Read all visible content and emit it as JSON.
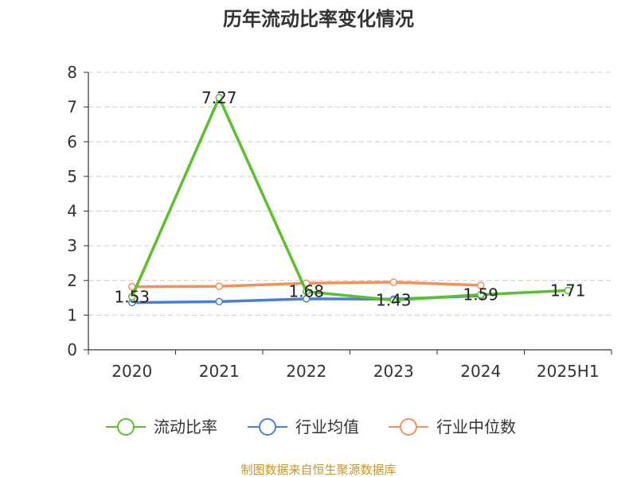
{
  "chart_data": {
    "type": "line",
    "title": "历年流动比率变化情况",
    "categories": [
      "2020",
      "2021",
      "2022",
      "2023",
      "2024",
      "2025H1"
    ],
    "ylim": [
      0,
      8
    ],
    "yticks": [
      0,
      1,
      2,
      3,
      4,
      5,
      6,
      7,
      8
    ],
    "grid": true,
    "legend_position": "bottom",
    "series": [
      {
        "name": "流动比率",
        "color": "#5ac02b",
        "values": [
          1.53,
          7.27,
          1.68,
          1.43,
          1.59,
          1.71
        ],
        "labels": [
          "1.53",
          "7.27",
          "1.68",
          "1.43",
          "1.59",
          "1.71"
        ]
      },
      {
        "name": "行业均值",
        "color": "#4a7fd4",
        "values": [
          1.36,
          1.39,
          1.47,
          1.46,
          1.56,
          null
        ]
      },
      {
        "name": "行业中位数",
        "color": "#f4915a",
        "values": [
          1.82,
          1.83,
          1.92,
          1.95,
          1.86,
          null
        ]
      }
    ],
    "source": "制图数据来自恒生聚源数据库"
  }
}
